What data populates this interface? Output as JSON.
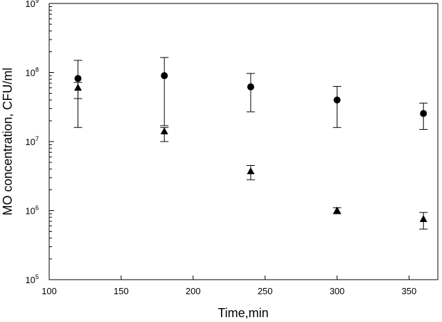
{
  "chart_data": {
    "type": "scatter",
    "title": "",
    "xlabel": "Time,min",
    "ylabel": "MO concentration, CFU/ml",
    "xlim": [
      100,
      370
    ],
    "xticks": [
      100,
      150,
      200,
      250,
      300,
      350
    ],
    "ylim": [
      100000,
      1000000000
    ],
    "yscale": "log",
    "yticks": [
      {
        "value": 100000,
        "base": "10",
        "exp": "5"
      },
      {
        "value": 1000000,
        "base": "10",
        "exp": "6"
      },
      {
        "value": 10000000,
        "base": "10",
        "exp": "7"
      },
      {
        "value": 100000000,
        "base": "10",
        "exp": "8"
      },
      {
        "value": 1000000000,
        "base": "10",
        "exp": "9"
      }
    ],
    "grid": false,
    "legend": "none",
    "series": [
      {
        "marker": "circle",
        "color": "#000000",
        "points": [
          {
            "x": 120,
            "y": 82000000,
            "err_low": 16000000,
            "err_high": 150000000
          },
          {
            "x": 180,
            "y": 90000000,
            "err_low": 17000000,
            "err_high": 165000000
          },
          {
            "x": 240,
            "y": 62000000,
            "err_low": 27000000,
            "err_high": 97000000
          },
          {
            "x": 300,
            "y": 40000000,
            "err_low": 16000000,
            "err_high": 63000000
          },
          {
            "x": 360,
            "y": 25500000,
            "err_low": 15000000,
            "err_high": 36000000
          }
        ]
      },
      {
        "marker": "triangle",
        "color": "#000000",
        "points": [
          {
            "x": 120,
            "y": 60000000,
            "err_low": 42000000,
            "err_high": 72000000
          },
          {
            "x": 180,
            "y": 14000000,
            "err_low": 10000000,
            "err_high": 16000000
          },
          {
            "x": 240,
            "y": 3700000,
            "err_low": 2800000,
            "err_high": 4500000
          },
          {
            "x": 300,
            "y": 1000000,
            "err_low": 900000,
            "err_high": 1100000
          },
          {
            "x": 360,
            "y": 750000,
            "err_low": 540000,
            "err_high": 940000
          }
        ]
      }
    ]
  }
}
